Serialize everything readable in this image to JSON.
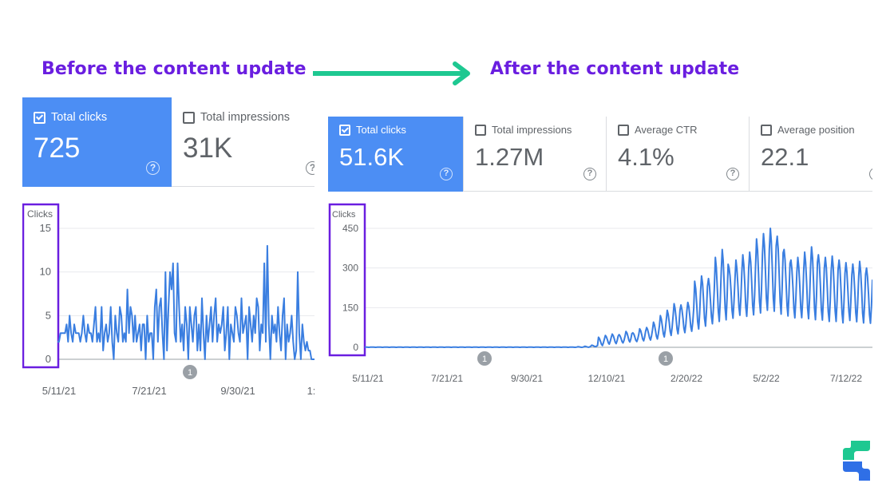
{
  "headings": {
    "before": "Before the content update",
    "after": "After the content update"
  },
  "colors": {
    "heading": "#6a1ee0",
    "arrow": "#1ec891",
    "active_tile": "#4c8ef4",
    "line": "#3a7ee0",
    "highlight_box": "#6a1ee0",
    "logo_green": "#1ec891",
    "logo_blue": "#2f6fe6"
  },
  "left_panel": {
    "metrics": [
      {
        "label": "Total clicks",
        "value": "725",
        "active": true
      },
      {
        "label": "Total impressions",
        "value": "31K",
        "active": false
      }
    ]
  },
  "right_panel": {
    "metrics": [
      {
        "label": "Total clicks",
        "value": "51.6K",
        "active": true
      },
      {
        "label": "Total impressions",
        "value": "1.27M",
        "active": false
      },
      {
        "label": "Average CTR",
        "value": "4.1%",
        "active": false
      },
      {
        "label": "Average position",
        "value": "22.1",
        "active": false
      }
    ]
  },
  "help_icon_glyph": "?",
  "chart_data": [
    {
      "type": "line",
      "title": "Before the content update",
      "ylabel": "Clicks",
      "ylim": [
        0,
        15
      ],
      "yticks": [
        0,
        5,
        10,
        15
      ],
      "xticks": [
        "5/11/21",
        "7/21/21",
        "9/30/21",
        "1:"
      ],
      "annotations": [
        {
          "label": "1",
          "near": "8/12/21"
        }
      ],
      "series": [
        {
          "name": "Clicks",
          "values": [
            2,
            2,
            3,
            3,
            3,
            3,
            4,
            2,
            5,
            3,
            2,
            4,
            3,
            3,
            3,
            2,
            3,
            5,
            3,
            2,
            4,
            3,
            3,
            2,
            4,
            6,
            2,
            3,
            2,
            6,
            1,
            3,
            4,
            2,
            3,
            6,
            2,
            0,
            5,
            3,
            2,
            6,
            5,
            2,
            3,
            2,
            8,
            3,
            6,
            5,
            2,
            5,
            2,
            3,
            4,
            1,
            4,
            4,
            0,
            5,
            2,
            3,
            3,
            0,
            6,
            8,
            2,
            6,
            7,
            3,
            0,
            10,
            1,
            6,
            10,
            8,
            11,
            3,
            2,
            11,
            6,
            2,
            4,
            1,
            6,
            4,
            0,
            6,
            4,
            2,
            5,
            6,
            1,
            4,
            1,
            7,
            3,
            0,
            5,
            2,
            4,
            6,
            2,
            5,
            7,
            2,
            4,
            3,
            4,
            6,
            1,
            3,
            6,
            0,
            4,
            3,
            2,
            6,
            5,
            3,
            2,
            7,
            3,
            4,
            5,
            0,
            6,
            4,
            2,
            5,
            3,
            7,
            6,
            1,
            4,
            3,
            11,
            2,
            13,
            4,
            0,
            5,
            3,
            4,
            2,
            6,
            3,
            1,
            5,
            7,
            0,
            4,
            2,
            3,
            5,
            2,
            0,
            1,
            10,
            3,
            0,
            4,
            2,
            1,
            2,
            1,
            1,
            0,
            0,
            0
          ]
        }
      ]
    },
    {
      "type": "line",
      "title": "After the content update",
      "ylabel": "Clicks",
      "ylim": [
        0,
        450
      ],
      "yticks": [
        0,
        150,
        300,
        450
      ],
      "xticks": [
        "5/11/21",
        "7/21/21",
        "9/30/21",
        "12/10/21",
        "2/20/22",
        "5/2/22",
        "7/12/22"
      ],
      "annotations": [
        {
          "label": "1",
          "near": "8/12/21"
        },
        {
          "label": "1",
          "near": "2/20/22"
        }
      ],
      "series": [
        {
          "name": "Clicks",
          "weekly_min_max": [
            [
              0,
              1
            ],
            [
              0,
              1
            ],
            [
              0,
              1
            ],
            [
              0,
              1
            ],
            [
              0,
              1
            ],
            [
              0,
              1
            ],
            [
              0,
              1
            ],
            [
              0,
              1
            ],
            [
              0,
              1
            ],
            [
              0,
              1
            ],
            [
              0,
              1
            ],
            [
              0,
              1
            ],
            [
              0,
              1
            ],
            [
              0,
              1
            ],
            [
              0,
              1
            ],
            [
              0,
              1
            ],
            [
              0,
              1
            ],
            [
              0,
              1
            ],
            [
              0,
              1
            ],
            [
              0,
              1
            ],
            [
              0,
              1
            ],
            [
              0,
              1
            ],
            [
              0,
              1
            ],
            [
              0,
              1
            ],
            [
              0,
              1
            ],
            [
              0,
              1
            ],
            [
              0,
              1
            ],
            [
              0,
              1
            ],
            [
              0,
              1
            ],
            [
              0,
              1
            ],
            [
              0,
              1
            ],
            [
              0,
              2
            ],
            [
              0,
              4
            ],
            [
              2,
              8
            ],
            [
              5,
              38
            ],
            [
              10,
              45
            ],
            [
              12,
              50
            ],
            [
              15,
              48
            ],
            [
              18,
              60
            ],
            [
              20,
              55
            ],
            [
              22,
              70
            ],
            [
              25,
              75
            ],
            [
              28,
              95
            ],
            [
              35,
              120
            ],
            [
              40,
              140
            ],
            [
              45,
              165
            ],
            [
              50,
              160
            ],
            [
              55,
              170
            ],
            [
              60,
              250
            ],
            [
              70,
              270
            ],
            [
              80,
              260
            ],
            [
              85,
              340
            ],
            [
              90,
              370
            ],
            [
              100,
              300
            ],
            [
              110,
              330
            ],
            [
              105,
              350
            ],
            [
              110,
              360
            ],
            [
              115,
              410
            ],
            [
              125,
              430
            ],
            [
              120,
              450
            ],
            [
              110,
              420
            ],
            [
              105,
              370
            ],
            [
              100,
              330
            ],
            [
              100,
              340
            ],
            [
              95,
              360
            ],
            [
              90,
              380
            ],
            [
              90,
              350
            ],
            [
              85,
              340
            ],
            [
              85,
              345
            ],
            [
              80,
              330
            ],
            [
              90,
              320
            ],
            [
              85,
              315
            ],
            [
              80,
              325
            ],
            [
              80,
              300
            ]
          ]
        }
      ]
    }
  ]
}
